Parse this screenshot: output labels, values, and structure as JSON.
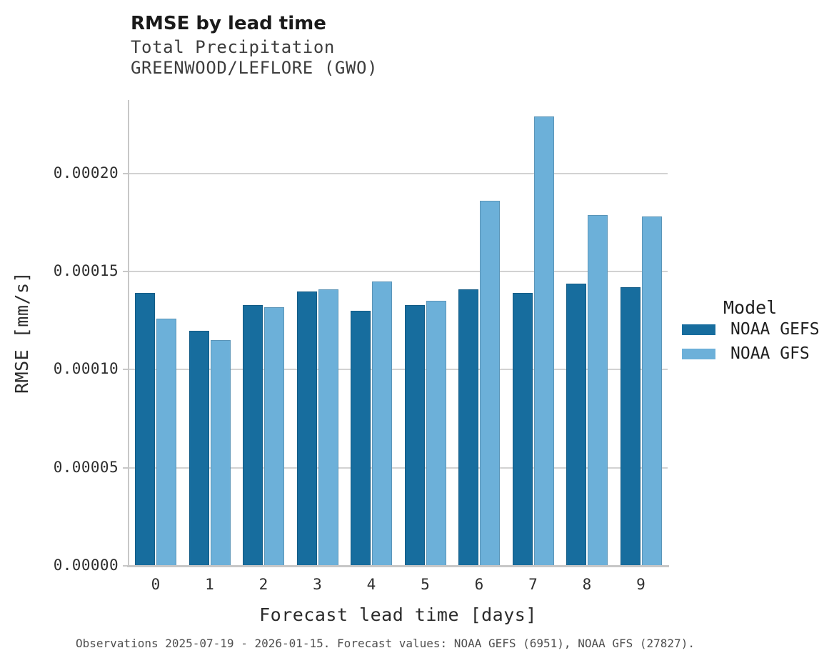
{
  "header": {
    "title": "RMSE by lead time",
    "subtitle_line1": "Total Precipitation",
    "subtitle_line2": "GREENWOOD/LEFLORE (GWO)"
  },
  "legend": {
    "title": "Model",
    "items": [
      {
        "label": "NOAA GEFS",
        "color": "#176D9E"
      },
      {
        "label": "NOAA GFS",
        "color": "#6CB0D9"
      }
    ]
  },
  "footer": {
    "caption": "Observations 2025-07-19 - 2026-01-15. Forecast values: NOAA GEFS (6951), NOAA GFS (27827)."
  },
  "colors": {
    "gefs_bar": "#176D9E",
    "gfs_bar": "#6CB0D9",
    "gridline": "#d2d2d2",
    "spine": "#c7c7c7",
    "background": "#ffffff"
  },
  "chart_data": {
    "type": "bar",
    "title": "RMSE by lead time",
    "subtitle": "Total Precipitation",
    "station": "GREENWOOD/LEFLORE (GWO)",
    "xlabel": "Forecast lead time [days]",
    "ylabel": "RMSE [mm/s]",
    "categories": [
      "0",
      "1",
      "2",
      "3",
      "4",
      "5",
      "6",
      "7",
      "8",
      "9"
    ],
    "series": [
      {
        "name": "NOAA GEFS",
        "color": "#176D9E",
        "values": [
          0.000139,
          0.00012,
          0.000133,
          0.00014,
          0.00013,
          0.000133,
          0.000141,
          0.000139,
          0.000144,
          0.000142
        ]
      },
      {
        "name": "NOAA GFS",
        "color": "#6CB0D9",
        "values": [
          0.000126,
          0.000115,
          0.000132,
          0.000141,
          0.000145,
          0.000135,
          0.000186,
          0.000229,
          0.000179,
          0.000178
        ]
      }
    ],
    "ylim": [
      0,
      0.0002375
    ],
    "yticks": [
      0.0,
      5e-05,
      0.0001,
      0.00015,
      0.0002
    ],
    "ytick_labels": [
      "0.00000",
      "0.00005",
      "0.00010",
      "0.00015",
      "0.00020"
    ],
    "grid": "horizontal-only",
    "legend_position": "right-middle",
    "legend_title": "Model"
  }
}
